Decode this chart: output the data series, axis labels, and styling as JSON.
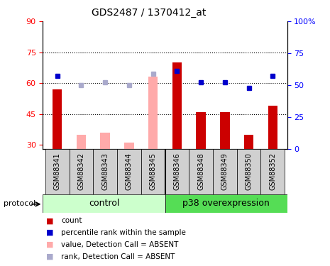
{
  "title": "GDS2487 / 1370412_at",
  "samples": [
    "GSM88341",
    "GSM88342",
    "GSM88343",
    "GSM88344",
    "GSM88345",
    "GSM88346",
    "GSM88348",
    "GSM88349",
    "GSM88350",
    "GSM88352"
  ],
  "ylim_left": [
    28,
    90
  ],
  "ylim_right": [
    0,
    100
  ],
  "yticks_left": [
    30,
    45,
    60,
    75,
    90
  ],
  "yticks_right": [
    0,
    25,
    50,
    75,
    100
  ],
  "ytick_labels_right": [
    "0",
    "25",
    "50",
    "75",
    "100%"
  ],
  "bar_values": [
    57,
    35,
    36,
    31,
    63,
    70,
    46,
    46,
    35,
    49
  ],
  "bar_absent": [
    false,
    true,
    true,
    true,
    true,
    false,
    false,
    false,
    false,
    false
  ],
  "rank_values": [
    57,
    50,
    52,
    50,
    59,
    61,
    52,
    52,
    48,
    57
  ],
  "rank_absent": [
    false,
    true,
    true,
    true,
    true,
    false,
    false,
    false,
    false,
    false
  ],
  "bar_color_present": "#cc0000",
  "bar_color_absent": "#ffaaaa",
  "rank_color_present": "#0000cc",
  "rank_color_absent": "#aaaacc",
  "control_bg": "#ccffcc",
  "p38_bg": "#55dd55",
  "hline_vals": [
    45,
    60,
    75
  ],
  "legend_items": [
    {
      "label": "count",
      "color": "#cc0000"
    },
    {
      "label": "percentile rank within the sample",
      "color": "#0000cc"
    },
    {
      "label": "value, Detection Call = ABSENT",
      "color": "#ffaaaa"
    },
    {
      "label": "rank, Detection Call = ABSENT",
      "color": "#aaaacc"
    }
  ],
  "n_control": 5,
  "bar_width": 0.4
}
